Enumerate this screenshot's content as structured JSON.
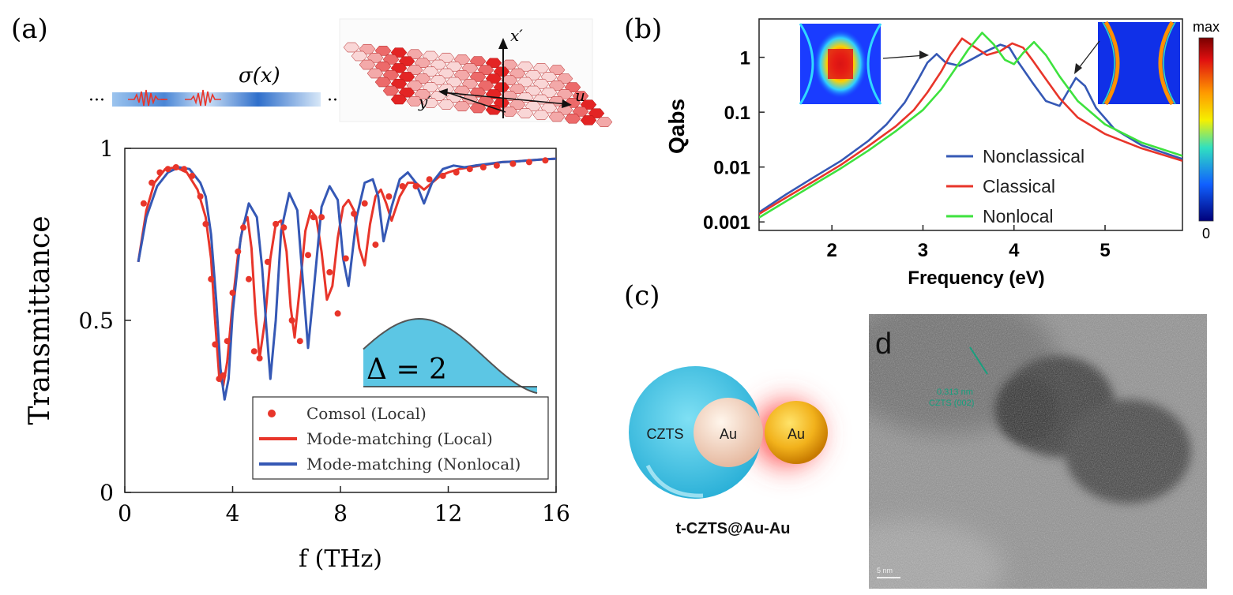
{
  "panel_labels": {
    "a": "(a)",
    "b": "(b)",
    "c": "(c)",
    "d": "d"
  },
  "colors": {
    "red": "#e8352a",
    "blue": "#3558b5",
    "green": "#3ee23e",
    "cyan": "#5cc6e4",
    "gold": "#f2b21c",
    "sigma_blue": "#3f7fd0"
  },
  "panel_a_schematic": {
    "sigma_label": "σ(x)",
    "ellipsis_left": "···",
    "ellipsis_right": "···",
    "axis_x_prime": "x′",
    "axis_y_prime": "y′",
    "axis_u": "u"
  },
  "panel_c_schematic": {
    "czts_label": "CZTS",
    "au_core_label": "Au",
    "au_sphere_label": "Au",
    "caption": "t-CZTS@Au-Au"
  },
  "panel_d_image": {
    "annotation_line1": "0.313 nm",
    "annotation_line2": "CZTS (002)",
    "scale_bar_label": "5 nm"
  },
  "chart_data": [
    {
      "id": "transmittance",
      "type": "line",
      "title": "",
      "xlabel": "f (THz)",
      "ylabel": "Transmittance",
      "xlim": [
        0,
        16
      ],
      "ylim": [
        0,
        1
      ],
      "x_ticks": [
        0,
        4,
        8,
        12,
        16
      ],
      "x_tick_labels": [
        "0",
        "4",
        "8",
        "12",
        "16"
      ],
      "y_ticks": [
        0,
        0.5,
        1
      ],
      "y_tick_labels": [
        "0",
        "0.5",
        "1"
      ],
      "inset_label": "Δ = 2",
      "legend_position": "bottom-right",
      "series": [
        {
          "name": "Comsol (Local)",
          "style": "markers",
          "color": "#e8352a",
          "x": [
            0.7,
            1.0,
            1.3,
            1.6,
            1.9,
            2.2,
            2.5,
            2.8,
            3.0,
            3.2,
            3.35,
            3.5,
            3.65,
            3.8,
            4.0,
            4.2,
            4.4,
            4.6,
            4.8,
            5.0,
            5.3,
            5.6,
            5.9,
            6.2,
            6.5,
            6.8,
            7.0,
            7.3,
            7.6,
            7.9,
            8.2,
            8.5,
            8.9,
            9.3,
            9.8,
            10.3,
            10.8,
            11.3,
            11.8,
            12.3,
            12.8,
            13.3,
            13.8,
            14.4,
            15.0,
            15.6
          ],
          "y": [
            0.84,
            0.9,
            0.93,
            0.94,
            0.945,
            0.94,
            0.92,
            0.86,
            0.78,
            0.62,
            0.43,
            0.33,
            0.34,
            0.44,
            0.58,
            0.7,
            0.77,
            0.62,
            0.41,
            0.39,
            0.67,
            0.78,
            0.77,
            0.5,
            0.44,
            0.69,
            0.8,
            0.8,
            0.64,
            0.52,
            0.68,
            0.81,
            0.84,
            0.72,
            0.86,
            0.89,
            0.89,
            0.91,
            0.92,
            0.93,
            0.94,
            0.945,
            0.95,
            0.955,
            0.96,
            0.965
          ]
        },
        {
          "name": "Mode-matching (Local)",
          "style": "line",
          "color": "#e8352a",
          "x": [
            0.5,
            0.8,
            1.1,
            1.5,
            1.9,
            2.3,
            2.7,
            3.0,
            3.2,
            3.35,
            3.5,
            3.65,
            3.8,
            4.0,
            4.2,
            4.4,
            4.55,
            4.7,
            4.85,
            5.0,
            5.2,
            5.4,
            5.6,
            5.8,
            6.0,
            6.15,
            6.3,
            6.5,
            6.7,
            6.9,
            7.1,
            7.3,
            7.5,
            7.7,
            7.9,
            8.1,
            8.3,
            8.5,
            8.7,
            8.9,
            9.1,
            9.3,
            9.5,
            9.7,
            9.9,
            10.2,
            10.5,
            10.8,
            11.1,
            11.4,
            11.7,
            12.0,
            12.4,
            12.8,
            13.2,
            13.6,
            14.0,
            14.5,
            15.0,
            15.5,
            16.0
          ],
          "y": [
            0.67,
            0.82,
            0.9,
            0.94,
            0.945,
            0.93,
            0.88,
            0.8,
            0.68,
            0.5,
            0.34,
            0.31,
            0.38,
            0.55,
            0.69,
            0.78,
            0.8,
            0.71,
            0.52,
            0.39,
            0.5,
            0.68,
            0.78,
            0.79,
            0.7,
            0.54,
            0.45,
            0.6,
            0.76,
            0.82,
            0.8,
            0.7,
            0.56,
            0.6,
            0.74,
            0.83,
            0.85,
            0.82,
            0.71,
            0.66,
            0.78,
            0.86,
            0.88,
            0.84,
            0.79,
            0.86,
            0.9,
            0.9,
            0.88,
            0.9,
            0.92,
            0.93,
            0.94,
            0.945,
            0.95,
            0.955,
            0.96,
            0.962,
            0.965,
            0.968,
            0.97
          ]
        },
        {
          "name": "Mode-matching (Nonlocal)",
          "style": "line",
          "color": "#3558b5",
          "x": [
            0.5,
            0.8,
            1.2,
            1.6,
            2.0,
            2.4,
            2.8,
            3.0,
            3.2,
            3.4,
            3.55,
            3.7,
            3.85,
            4.0,
            4.3,
            4.6,
            4.9,
            5.1,
            5.25,
            5.4,
            5.6,
            5.8,
            6.1,
            6.4,
            6.6,
            6.8,
            7.0,
            7.3,
            7.6,
            7.9,
            8.1,
            8.3,
            8.6,
            8.9,
            9.2,
            9.4,
            9.6,
            9.9,
            10.2,
            10.5,
            10.8,
            11.1,
            11.4,
            11.8,
            12.2,
            12.6,
            13.0,
            13.5,
            14.0,
            14.5,
            15.0,
            15.5,
            16.0
          ],
          "y": [
            0.67,
            0.8,
            0.89,
            0.93,
            0.945,
            0.94,
            0.9,
            0.86,
            0.75,
            0.55,
            0.36,
            0.27,
            0.33,
            0.52,
            0.74,
            0.84,
            0.8,
            0.65,
            0.48,
            0.33,
            0.5,
            0.76,
            0.87,
            0.82,
            0.62,
            0.42,
            0.58,
            0.83,
            0.89,
            0.85,
            0.68,
            0.6,
            0.8,
            0.9,
            0.91,
            0.86,
            0.73,
            0.83,
            0.91,
            0.93,
            0.9,
            0.84,
            0.9,
            0.94,
            0.95,
            0.945,
            0.95,
            0.955,
            0.96,
            0.962,
            0.965,
            0.968,
            0.97
          ]
        }
      ]
    },
    {
      "id": "absorption",
      "type": "line",
      "title": "",
      "xlabel": "Frequency (eV)",
      "ylabel": "Qabs",
      "y_scale": "log",
      "xlim": [
        1.2,
        5.85
      ],
      "ylim": [
        0.0007,
        5
      ],
      "x_ticks": [
        2,
        3,
        4,
        5
      ],
      "x_tick_labels": [
        "2",
        "3",
        "4",
        "5"
      ],
      "y_ticks": [
        0.001,
        0.01,
        0.1,
        1
      ],
      "y_tick_labels": [
        "0.001",
        "0.01",
        "0.1",
        "1"
      ],
      "colorbar": {
        "max_label": "max",
        "min_label": "0"
      },
      "legend_position": "bottom-right",
      "series": [
        {
          "name": "Nonclassical",
          "color": "#3558b5",
          "x": [
            1.2,
            1.5,
            1.8,
            2.1,
            2.4,
            2.6,
            2.8,
            2.95,
            3.05,
            3.15,
            3.25,
            3.4,
            3.55,
            3.7,
            3.85,
            3.95,
            4.05,
            4.2,
            4.35,
            4.5,
            4.6,
            4.68,
            4.78,
            4.9,
            5.1,
            5.4,
            5.85
          ],
          "y": [
            0.0015,
            0.0032,
            0.0065,
            0.013,
            0.03,
            0.06,
            0.15,
            0.4,
            0.8,
            1.15,
            0.8,
            0.7,
            0.95,
            1.3,
            1.7,
            1.5,
            0.8,
            0.35,
            0.16,
            0.13,
            0.25,
            0.42,
            0.3,
            0.12,
            0.05,
            0.025,
            0.014
          ]
        },
        {
          "name": "Classical",
          "color": "#e8352a",
          "x": [
            1.2,
            1.5,
            1.8,
            2.1,
            2.4,
            2.7,
            2.9,
            3.05,
            3.2,
            3.3,
            3.43,
            3.55,
            3.7,
            3.85,
            3.98,
            4.1,
            4.2,
            4.35,
            4.5,
            4.7,
            5.0,
            5.4,
            5.85
          ],
          "y": [
            0.0014,
            0.0028,
            0.0055,
            0.011,
            0.024,
            0.055,
            0.11,
            0.23,
            0.55,
            1.1,
            2.2,
            1.6,
            1.1,
            1.3,
            1.8,
            1.5,
            0.9,
            0.4,
            0.18,
            0.08,
            0.04,
            0.022,
            0.013
          ]
        },
        {
          "name": "Nonlocal",
          "color": "#3ee23e",
          "x": [
            1.2,
            1.5,
            1.8,
            2.1,
            2.4,
            2.7,
            3.0,
            3.2,
            3.35,
            3.5,
            3.65,
            3.78,
            3.9,
            4.0,
            4.1,
            4.22,
            4.35,
            4.5,
            4.7,
            5.0,
            5.4,
            5.85
          ],
          "y": [
            0.0012,
            0.0024,
            0.0048,
            0.0095,
            0.02,
            0.045,
            0.11,
            0.26,
            0.6,
            1.4,
            2.8,
            1.7,
            0.9,
            0.75,
            1.2,
            1.9,
            1.1,
            0.45,
            0.16,
            0.06,
            0.028,
            0.016
          ]
        }
      ]
    }
  ]
}
